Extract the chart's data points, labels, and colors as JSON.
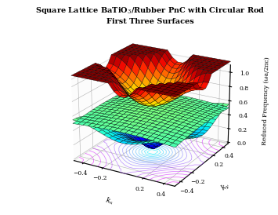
{
  "title_line1": "Square Lattice BaTiO$_3$/Rubber PnC with Circular Rod",
  "title_line2": "First Three Surfaces",
  "xlabel": "$k_x$",
  "ylabel": "$k_y$",
  "zlabel": "Reduced Frequency (ωa/2πc)",
  "kx_range": [
    -0.5,
    0.5
  ],
  "ky_range": [
    -0.5,
    0.5
  ],
  "zlim": [
    0.0,
    1.1
  ],
  "zticks": [
    0,
    0.2,
    0.4,
    0.6,
    0.8,
    1.0
  ],
  "xticks": [
    -0.4,
    -0.2,
    0.2,
    0.4
  ],
  "yticks": [
    -0.4,
    -0.2,
    0.2,
    0.4
  ],
  "n_grid": 20,
  "elev": 22,
  "azim": -60,
  "background_color": "#ffffff"
}
